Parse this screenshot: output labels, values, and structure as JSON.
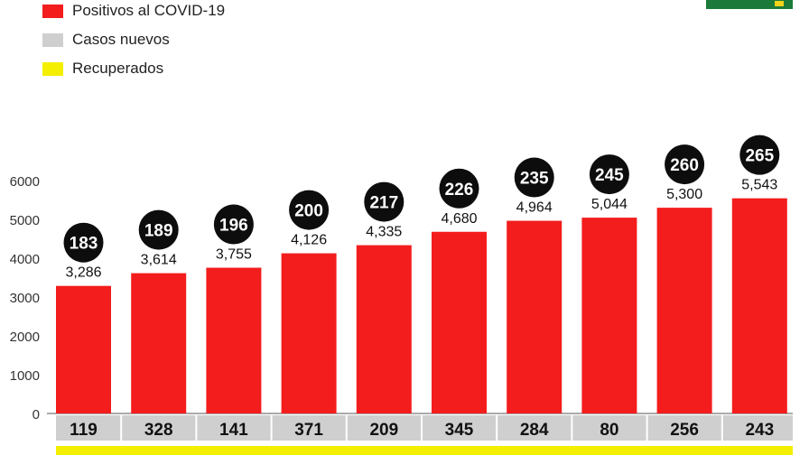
{
  "legend": [
    {
      "label": "Positivos al COVID-19",
      "color": "#f31d1d"
    },
    {
      "label": "Casos nuevos",
      "color": "#cfcfcf"
    },
    {
      "label": "Recuperados",
      "color": "#f4ef00"
    }
  ],
  "badge": {
    "color": "#1b7a3a"
  },
  "chart_data": {
    "type": "bar",
    "title": "",
    "xlabel": "",
    "ylabel": "",
    "ylim": [
      0,
      6000
    ],
    "yticks": [
      0,
      1000,
      2000,
      3000,
      4000,
      5000,
      6000
    ],
    "grid": false,
    "legend_position": "top-left",
    "series": [
      {
        "name": "Positivos al COVID-19",
        "color": "#f31d1d",
        "values": [
          3286,
          3614,
          3755,
          4126,
          4335,
          4680,
          4964,
          5044,
          5300,
          5543
        ],
        "labels": [
          "3,286",
          "3,614",
          "3,755",
          "4,126",
          "4,335",
          "4,680",
          "4,964",
          "5,044",
          "5,300",
          "5,543"
        ]
      },
      {
        "name": "Casos nuevos",
        "color": "#cfcfcf",
        "values": [
          119,
          328,
          141,
          371,
          209,
          345,
          284,
          80,
          256,
          243
        ]
      }
    ],
    "circle_values": [
      183,
      189,
      196,
      200,
      217,
      226,
      235,
      245,
      260,
      265
    ],
    "circle_color": "#0d0d0d"
  }
}
